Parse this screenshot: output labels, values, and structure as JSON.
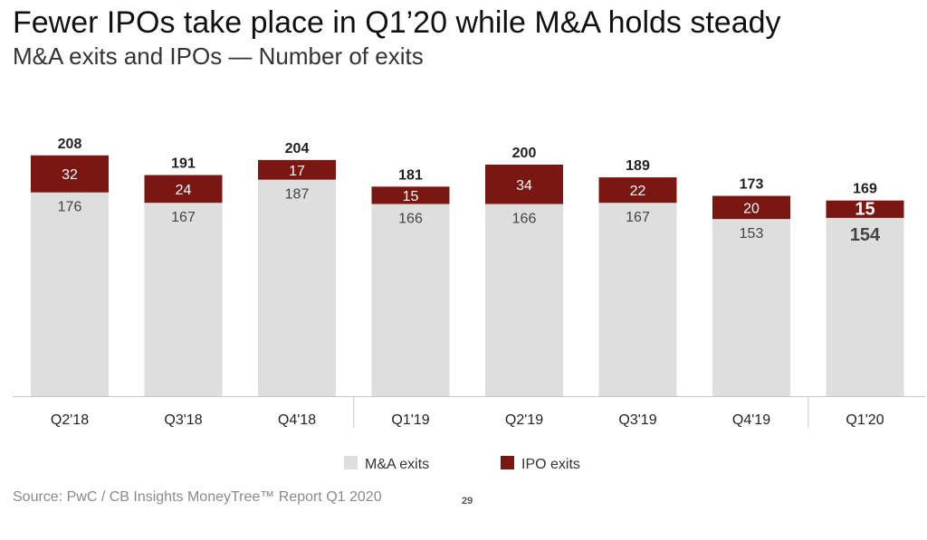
{
  "title": "Fewer IPOs take place in Q1’20 while M&A holds steady",
  "subtitle": "M&A exits and IPOs — Number of exits",
  "source": "Source: PwC / CB Insights MoneyTree™ Report Q1 2020",
  "page_number": "29",
  "colors": {
    "ma": "#dedede",
    "ipo": "#7a1712"
  },
  "chart_data": {
    "type": "bar",
    "stacked": true,
    "categories": [
      "Q2'18",
      "Q3'18",
      "Q4'18",
      "Q1'19",
      "Q2'19",
      "Q3'19",
      "Q4'19",
      "Q1'20"
    ],
    "series": [
      {
        "name": "M&A exits",
        "values": [
          176,
          167,
          187,
          166,
          166,
          167,
          153,
          154
        ]
      },
      {
        "name": "IPO exits",
        "values": [
          32,
          24,
          17,
          15,
          34,
          22,
          20,
          15
        ]
      }
    ],
    "totals": [
      208,
      191,
      204,
      181,
      200,
      189,
      173,
      169
    ],
    "ylim": [
      0,
      250
    ],
    "grid": false,
    "legend_position": "bottom-center",
    "highlight_category": "Q1'20"
  }
}
